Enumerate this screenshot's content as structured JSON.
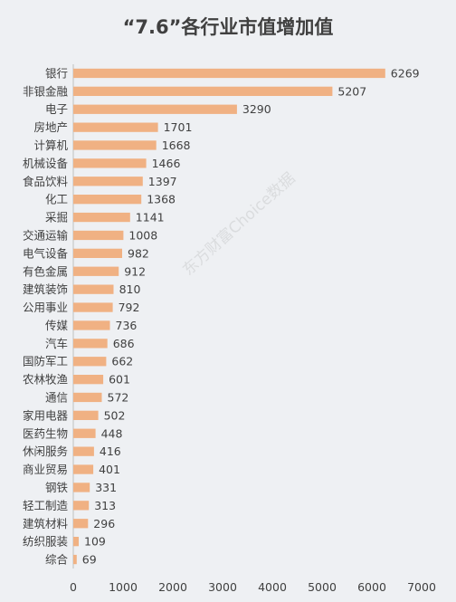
{
  "chart_data": {
    "type": "bar",
    "orientation": "horizontal",
    "title": "“7.6”各行业市值增加值",
    "categories": [
      "银行",
      "非银金融",
      "电子",
      "房地产",
      "计算机",
      "机械设备",
      "食品饮料",
      "化工",
      "采掘",
      "交通运输",
      "电气设备",
      "有色金属",
      "建筑装饰",
      "公用事业",
      "传媒",
      "汽车",
      "国防军工",
      "农林牧渔",
      "通信",
      "家用电器",
      "医药生物",
      "休闲服务",
      "商业贸易",
      "钢铁",
      "轻工制造",
      "建筑材料",
      "纺织服装",
      "综合"
    ],
    "values": [
      6269,
      5207,
      3290,
      1701,
      1668,
      1466,
      1397,
      1368,
      1141,
      1008,
      982,
      912,
      810,
      792,
      736,
      686,
      662,
      601,
      572,
      502,
      448,
      416,
      401,
      331,
      313,
      296,
      109,
      69
    ],
    "xlim": [
      0,
      7000
    ],
    "xticks": [
      0,
      1000,
      2000,
      3000,
      4000,
      5000,
      6000,
      7000
    ],
    "data_labels": true,
    "grid": false,
    "legend": "none",
    "bar_color": "#f0b183"
  },
  "watermark": "东方财富Choice数据",
  "colors": {
    "background": "#eef0f3",
    "bar": "#f0b183",
    "text": "#404040",
    "axis": "#bfbfbf"
  }
}
